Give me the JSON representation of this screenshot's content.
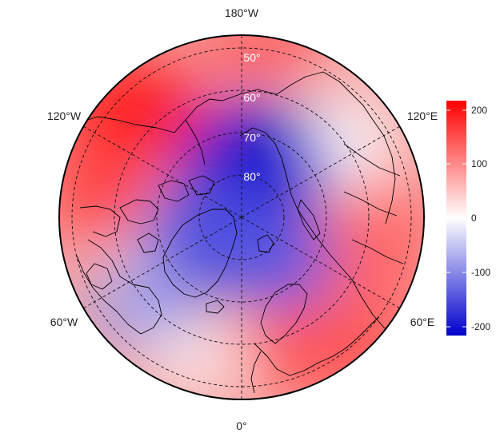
{
  "map": {
    "projection": "north-polar-stereographic",
    "longitude_labels": {
      "top": "180°W",
      "bottom": "0°",
      "upper_left": "120°W",
      "upper_right": "120°E",
      "lower_left": "60°W",
      "lower_right": "60°E"
    },
    "latitude_labels": [
      "50°",
      "60°",
      "70°",
      "80°"
    ],
    "grid": "dashed",
    "background_pattern": "blue negative anomaly over the pole, Greenland and Scandinavia; red positive anomaly ring at mid-latitudes, strongest over the North Pacific near Alaska"
  },
  "colorbar": {
    "ticks": [
      "200",
      "100",
      "0",
      "-100",
      "-200"
    ],
    "colors": {
      "max": "#ff0000",
      "mid": "#ffffff",
      "min": "#0000cd"
    }
  }
}
